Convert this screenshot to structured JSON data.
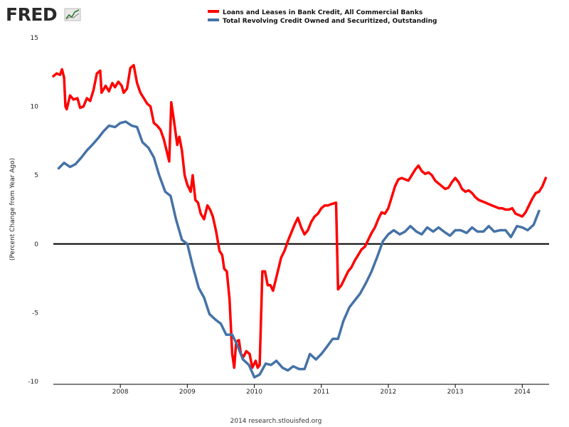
{
  "brand": {
    "name": "FRED"
  },
  "chart_data": {
    "type": "line",
    "title": "",
    "xlabel": "",
    "ylabel": "(Percent Change from Year Ago)",
    "xlim": [
      2007.0,
      2014.4
    ],
    "ylim": [
      -10,
      15
    ],
    "x_ticks": [
      2008,
      2009,
      2010,
      2011,
      2012,
      2013,
      2014
    ],
    "x_tick_labels": [
      "2008",
      "2009",
      "2010",
      "2011",
      "2012",
      "2013",
      "2014"
    ],
    "y_ticks": [
      -10,
      -5,
      0,
      5,
      10,
      15
    ],
    "y_tick_labels": [
      "-10",
      "-5",
      "0",
      "5",
      "10",
      "15"
    ],
    "grid": "none",
    "zero_line": true,
    "legend_position": "top",
    "source": "2014 research.stlouisfed.org",
    "series": [
      {
        "name": "Loans and Leases in Bank Credit, All Commercial Banks",
        "color": "#ff0000",
        "points": [
          [
            2007.0,
            12.2
          ],
          [
            2007.05,
            12.4
          ],
          [
            2007.1,
            12.3
          ],
          [
            2007.13,
            12.7
          ],
          [
            2007.16,
            12.1
          ],
          [
            2007.18,
            10.0
          ],
          [
            2007.2,
            9.8
          ],
          [
            2007.25,
            10.8
          ],
          [
            2007.3,
            10.5
          ],
          [
            2007.36,
            10.6
          ],
          [
            2007.4,
            9.9
          ],
          [
            2007.45,
            10.0
          ],
          [
            2007.5,
            10.6
          ],
          [
            2007.55,
            10.4
          ],
          [
            2007.6,
            11.2
          ],
          [
            2007.65,
            12.4
          ],
          [
            2007.7,
            12.6
          ],
          [
            2007.72,
            11.0
          ],
          [
            2007.78,
            11.5
          ],
          [
            2007.83,
            11.1
          ],
          [
            2007.88,
            11.7
          ],
          [
            2007.92,
            11.4
          ],
          [
            2007.97,
            11.8
          ],
          [
            2008.02,
            11.5
          ],
          [
            2008.05,
            11.0
          ],
          [
            2008.1,
            11.3
          ],
          [
            2008.15,
            12.8
          ],
          [
            2008.2,
            13.0
          ],
          [
            2008.25,
            11.7
          ],
          [
            2008.3,
            11.0
          ],
          [
            2008.35,
            10.6
          ],
          [
            2008.4,
            10.2
          ],
          [
            2008.45,
            10.0
          ],
          [
            2008.5,
            8.8
          ],
          [
            2008.55,
            8.6
          ],
          [
            2008.6,
            8.3
          ],
          [
            2008.65,
            7.6
          ],
          [
            2008.7,
            6.6
          ],
          [
            2008.73,
            6.0
          ],
          [
            2008.76,
            10.3
          ],
          [
            2008.8,
            9.0
          ],
          [
            2008.85,
            7.2
          ],
          [
            2008.88,
            7.8
          ],
          [
            2008.92,
            6.8
          ],
          [
            2008.96,
            5.0
          ],
          [
            2009.0,
            4.3
          ],
          [
            2009.05,
            3.8
          ],
          [
            2009.08,
            5.0
          ],
          [
            2009.12,
            3.2
          ],
          [
            2009.16,
            3.0
          ],
          [
            2009.2,
            2.2
          ],
          [
            2009.25,
            1.8
          ],
          [
            2009.3,
            2.8
          ],
          [
            2009.34,
            2.5
          ],
          [
            2009.38,
            2.0
          ],
          [
            2009.43,
            0.9
          ],
          [
            2009.48,
            -0.5
          ],
          [
            2009.52,
            -0.8
          ],
          [
            2009.55,
            -1.8
          ],
          [
            2009.59,
            -2.0
          ],
          [
            2009.63,
            -4.0
          ],
          [
            2009.67,
            -8.0
          ],
          [
            2009.7,
            -9.0
          ],
          [
            2009.73,
            -7.1
          ],
          [
            2009.77,
            -7.0
          ],
          [
            2009.8,
            -8.0
          ],
          [
            2009.84,
            -8.2
          ],
          [
            2009.88,
            -7.8
          ],
          [
            2009.93,
            -8.0
          ],
          [
            2009.97,
            -9.0
          ],
          [
            2010.02,
            -8.5
          ],
          [
            2010.05,
            -9.0
          ],
          [
            2010.08,
            -8.8
          ],
          [
            2010.12,
            -2.0
          ],
          [
            2010.16,
            -2.0
          ],
          [
            2010.2,
            -3.0
          ],
          [
            2010.24,
            -3.0
          ],
          [
            2010.28,
            -3.4
          ],
          [
            2010.32,
            -2.6
          ],
          [
            2010.36,
            -1.8
          ],
          [
            2010.4,
            -1.0
          ],
          [
            2010.45,
            -0.5
          ],
          [
            2010.5,
            0.2
          ],
          [
            2010.55,
            0.8
          ],
          [
            2010.6,
            1.4
          ],
          [
            2010.65,
            1.9
          ],
          [
            2010.7,
            1.2
          ],
          [
            2010.75,
            0.7
          ],
          [
            2010.8,
            1.0
          ],
          [
            2010.85,
            1.6
          ],
          [
            2010.9,
            2.0
          ],
          [
            2010.95,
            2.2
          ],
          [
            2011.0,
            2.6
          ],
          [
            2011.05,
            2.8
          ],
          [
            2011.1,
            2.8
          ],
          [
            2011.15,
            2.9
          ],
          [
            2011.22,
            3.0
          ],
          [
            2011.25,
            -3.3
          ],
          [
            2011.3,
            -3.0
          ],
          [
            2011.35,
            -2.5
          ],
          [
            2011.4,
            -2.0
          ],
          [
            2011.45,
            -1.7
          ],
          [
            2011.5,
            -1.2
          ],
          [
            2011.55,
            -0.8
          ],
          [
            2011.6,
            -0.4
          ],
          [
            2011.65,
            -0.2
          ],
          [
            2011.7,
            0.3
          ],
          [
            2011.75,
            0.8
          ],
          [
            2011.8,
            1.2
          ],
          [
            2011.85,
            1.8
          ],
          [
            2011.9,
            2.3
          ],
          [
            2011.95,
            2.2
          ],
          [
            2012.0,
            2.6
          ],
          [
            2012.05,
            3.4
          ],
          [
            2012.1,
            4.2
          ],
          [
            2012.15,
            4.7
          ],
          [
            2012.2,
            4.8
          ],
          [
            2012.25,
            4.7
          ],
          [
            2012.3,
            4.6
          ],
          [
            2012.35,
            5.0
          ],
          [
            2012.4,
            5.4
          ],
          [
            2012.45,
            5.7
          ],
          [
            2012.5,
            5.3
          ],
          [
            2012.55,
            5.1
          ],
          [
            2012.6,
            5.2
          ],
          [
            2012.65,
            5.0
          ],
          [
            2012.7,
            4.6
          ],
          [
            2012.75,
            4.4
          ],
          [
            2012.8,
            4.2
          ],
          [
            2012.85,
            4.0
          ],
          [
            2012.9,
            4.1
          ],
          [
            2012.95,
            4.5
          ],
          [
            2013.0,
            4.8
          ],
          [
            2013.05,
            4.5
          ],
          [
            2013.1,
            4.0
          ],
          [
            2013.15,
            3.8
          ],
          [
            2013.2,
            3.9
          ],
          [
            2013.25,
            3.7
          ],
          [
            2013.3,
            3.4
          ],
          [
            2013.35,
            3.2
          ],
          [
            2013.4,
            3.1
          ],
          [
            2013.45,
            3.0
          ],
          [
            2013.5,
            2.9
          ],
          [
            2013.55,
            2.8
          ],
          [
            2013.6,
            2.7
          ],
          [
            2013.65,
            2.6
          ],
          [
            2013.7,
            2.6
          ],
          [
            2013.75,
            2.5
          ],
          [
            2013.8,
            2.5
          ],
          [
            2013.85,
            2.6
          ],
          [
            2013.9,
            2.2
          ],
          [
            2013.95,
            2.1
          ],
          [
            2014.0,
            2.0
          ],
          [
            2014.05,
            2.3
          ],
          [
            2014.1,
            2.8
          ],
          [
            2014.15,
            3.3
          ],
          [
            2014.2,
            3.7
          ],
          [
            2014.25,
            3.8
          ],
          [
            2014.3,
            4.2
          ],
          [
            2014.35,
            4.8
          ]
        ]
      },
      {
        "name": "Total Revolving Credit Owned and Securitized, Outstanding",
        "color": "#4572a7",
        "points": [
          [
            2007.08,
            5.5
          ],
          [
            2007.16,
            5.9
          ],
          [
            2007.25,
            5.6
          ],
          [
            2007.33,
            5.8
          ],
          [
            2007.42,
            6.3
          ],
          [
            2007.5,
            6.8
          ],
          [
            2007.58,
            7.2
          ],
          [
            2007.67,
            7.7
          ],
          [
            2007.75,
            8.2
          ],
          [
            2007.83,
            8.6
          ],
          [
            2007.92,
            8.5
          ],
          [
            2008.0,
            8.8
          ],
          [
            2008.08,
            8.9
          ],
          [
            2008.17,
            8.6
          ],
          [
            2008.25,
            8.5
          ],
          [
            2008.33,
            7.4
          ],
          [
            2008.42,
            7.0
          ],
          [
            2008.5,
            6.3
          ],
          [
            2008.58,
            5.0
          ],
          [
            2008.67,
            3.8
          ],
          [
            2008.75,
            3.5
          ],
          [
            2008.83,
            1.8
          ],
          [
            2008.92,
            0.3
          ],
          [
            2009.0,
            0.0
          ],
          [
            2009.08,
            -1.6
          ],
          [
            2009.17,
            -3.2
          ],
          [
            2009.25,
            -3.9
          ],
          [
            2009.33,
            -5.1
          ],
          [
            2009.42,
            -5.5
          ],
          [
            2009.5,
            -5.8
          ],
          [
            2009.58,
            -6.6
          ],
          [
            2009.67,
            -6.6
          ],
          [
            2009.75,
            -7.4
          ],
          [
            2009.83,
            -8.4
          ],
          [
            2009.92,
            -8.8
          ],
          [
            2010.0,
            -9.7
          ],
          [
            2010.08,
            -9.5
          ],
          [
            2010.17,
            -8.7
          ],
          [
            2010.25,
            -8.8
          ],
          [
            2010.33,
            -8.5
          ],
          [
            2010.42,
            -9.0
          ],
          [
            2010.5,
            -9.2
          ],
          [
            2010.58,
            -8.9
          ],
          [
            2010.67,
            -9.1
          ],
          [
            2010.75,
            -9.1
          ],
          [
            2010.83,
            -8.0
          ],
          [
            2010.92,
            -8.4
          ],
          [
            2011.0,
            -8.0
          ],
          [
            2011.08,
            -7.5
          ],
          [
            2011.17,
            -6.9
          ],
          [
            2011.25,
            -6.9
          ],
          [
            2011.33,
            -5.6
          ],
          [
            2011.42,
            -4.6
          ],
          [
            2011.5,
            -4.1
          ],
          [
            2011.58,
            -3.6
          ],
          [
            2011.67,
            -2.8
          ],
          [
            2011.75,
            -2.0
          ],
          [
            2011.83,
            -1.0
          ],
          [
            2011.92,
            0.2
          ],
          [
            2012.0,
            0.7
          ],
          [
            2012.08,
            1.0
          ],
          [
            2012.17,
            0.7
          ],
          [
            2012.25,
            0.9
          ],
          [
            2012.33,
            1.3
          ],
          [
            2012.42,
            0.9
          ],
          [
            2012.5,
            0.7
          ],
          [
            2012.58,
            1.2
          ],
          [
            2012.67,
            0.9
          ],
          [
            2012.75,
            1.2
          ],
          [
            2012.83,
            0.9
          ],
          [
            2012.92,
            0.6
          ],
          [
            2013.0,
            1.0
          ],
          [
            2013.08,
            1.0
          ],
          [
            2013.17,
            0.8
          ],
          [
            2013.25,
            1.2
          ],
          [
            2013.33,
            0.9
          ],
          [
            2013.42,
            0.9
          ],
          [
            2013.5,
            1.3
          ],
          [
            2013.58,
            0.9
          ],
          [
            2013.67,
            1.0
          ],
          [
            2013.75,
            1.0
          ],
          [
            2013.83,
            0.5
          ],
          [
            2013.92,
            1.3
          ],
          [
            2014.0,
            1.2
          ],
          [
            2014.08,
            1.0
          ],
          [
            2014.17,
            1.4
          ],
          [
            2014.25,
            2.4
          ]
        ]
      }
    ]
  }
}
